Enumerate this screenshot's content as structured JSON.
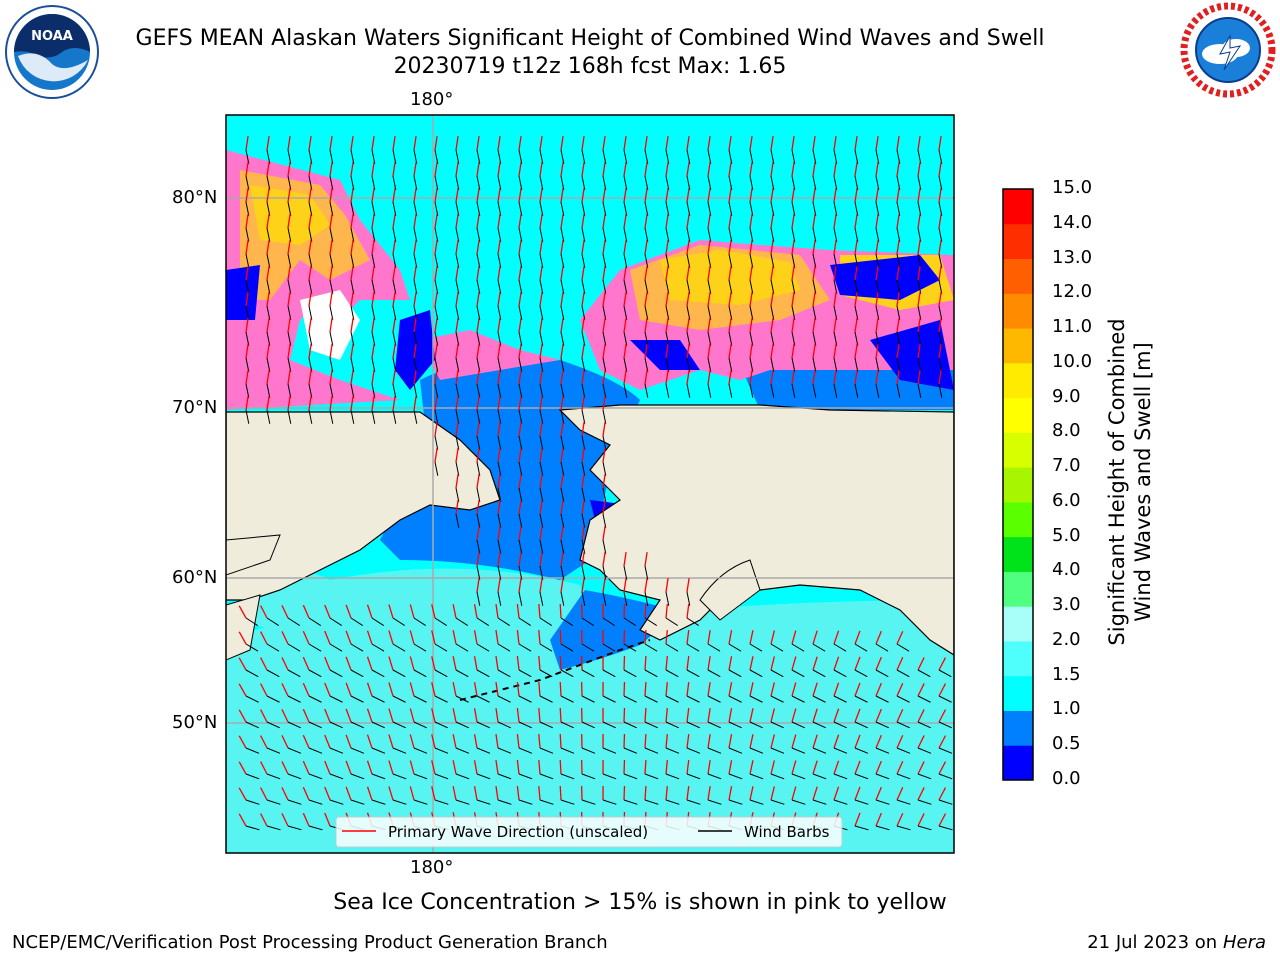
{
  "header": {
    "title_line1": "GEFS MEAN Alaskan Waters Significant Height of Combined Wind Waves and Swell",
    "title_line2": "20230719 t12z 168h fcst   Max: 1.65"
  },
  "logos": {
    "noaa": {
      "text": "NOAA",
      "icon": "noaa-logo-icon"
    },
    "nws": {
      "icon": "nws-logo-icon"
    }
  },
  "map": {
    "lon_ticks": [
      "180°",
      "180°"
    ],
    "lat_ticks": [
      "80°N",
      "70°N",
      "60°N",
      "50°N"
    ],
    "colors": {
      "land": "#efecdc",
      "water_light": "#57f4f2",
      "water_mid": "#00ffff",
      "water_deep": "#0080ff",
      "water_darkest": "#0000ff",
      "ice_pink": "#ff77cc",
      "ice_orange": "#ffb74d",
      "ice_yellow": "#ffd21a",
      "wave_arrow": "#ff0000",
      "wind_barb": "#000000"
    },
    "legend": {
      "wave_label": "Primary Wave Direction (unscaled)",
      "wind_label": "Wind Barbs"
    }
  },
  "colorbar": {
    "label_line1": "Significant Height of Combined",
    "label_line2": "Wind Waves and Swell [m]",
    "ticks": [
      "15.0",
      "14.0",
      "13.0",
      "12.0",
      "11.0",
      "10.0",
      "9.0",
      "8.0",
      "7.0",
      "6.0",
      "5.0",
      "4.0",
      "3.0",
      "2.0",
      "1.5",
      "1.0",
      "0.5",
      "0.0"
    ],
    "colors": [
      "#0000ff",
      "#0080ff",
      "#00ffff",
      "#4ffffc",
      "#a8fffa",
      "#4fff7f",
      "#00e31a",
      "#5aff00",
      "#a8f500",
      "#d7ff00",
      "#ffff00",
      "#ffeb00",
      "#ffb800",
      "#ff8b00",
      "#ff5f00",
      "#ff2e00",
      "#ff0000"
    ]
  },
  "notes": {
    "ice": "Sea Ice Concentration > 15% is shown in pink to yellow"
  },
  "footer": {
    "left": "NCEP/EMC/Verification Post Processing Product Generation Branch",
    "right_date": "21 Jul 2023 on ",
    "right_host": "Hera"
  }
}
